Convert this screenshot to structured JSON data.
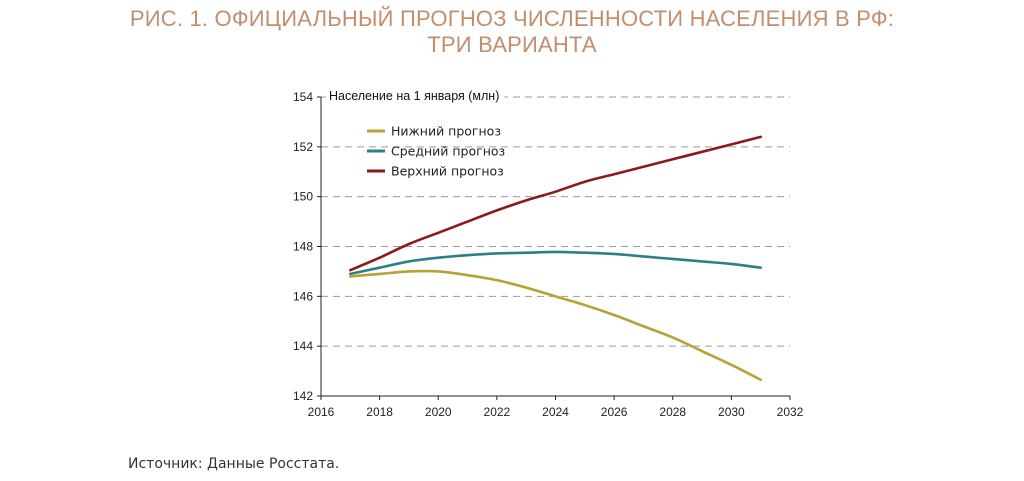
{
  "figure": {
    "title_lines": [
      "РИС. 1. ОФИЦИАЛЬНЫЙ ПРОГНОЗ ЧИСЛЕННОСТИ НАСЕЛЕНИЯ В РФ:",
      "ТРИ ВАРИАНТА"
    ],
    "source": "Источник: Данные Росстата."
  },
  "chart_data": {
    "type": "line",
    "ylabel": "Население на 1 января (млн)",
    "xlim": [
      2016,
      2032
    ],
    "ylim": [
      142,
      154
    ],
    "x_ticks": [
      2016,
      2018,
      2020,
      2022,
      2024,
      2026,
      2028,
      2030,
      2032
    ],
    "y_ticks": [
      142,
      144,
      146,
      148,
      150,
      152,
      154
    ],
    "grid": "horizontal dashed",
    "legend_position": "top-left",
    "series": [
      {
        "name": "Нижний прогноз",
        "color": "#b8a233",
        "x": [
          2017,
          2018,
          2019,
          2020,
          2021,
          2022,
          2023,
          2024,
          2025,
          2026,
          2027,
          2028,
          2029,
          2030,
          2031
        ],
        "y": [
          146.8,
          146.9,
          147.0,
          147.0,
          146.85,
          146.65,
          146.35,
          146.0,
          145.65,
          145.25,
          144.8,
          144.35,
          143.8,
          143.25,
          142.65
        ]
      },
      {
        "name": "Средний прогноз",
        "color": "#2e7f82",
        "x": [
          2017,
          2018,
          2019,
          2020,
          2021,
          2022,
          2023,
          2024,
          2025,
          2026,
          2027,
          2028,
          2029,
          2030,
          2031
        ],
        "y": [
          146.9,
          147.15,
          147.4,
          147.55,
          147.65,
          147.72,
          147.75,
          147.78,
          147.75,
          147.7,
          147.6,
          147.5,
          147.4,
          147.3,
          147.15
        ]
      },
      {
        "name": "Верхний прогноз",
        "color": "#8b1a1a",
        "x": [
          2017,
          2018,
          2019,
          2020,
          2021,
          2022,
          2023,
          2024,
          2025,
          2026,
          2027,
          2028,
          2029,
          2030,
          2031
        ],
        "y": [
          147.05,
          147.55,
          148.1,
          148.55,
          149.0,
          149.45,
          149.85,
          150.2,
          150.6,
          150.9,
          151.2,
          151.5,
          151.8,
          152.1,
          152.4
        ]
      }
    ]
  }
}
